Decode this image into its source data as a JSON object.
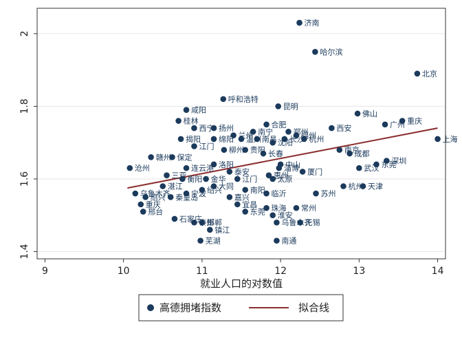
{
  "chart_data": {
    "type": "scatter",
    "xlabel": "就业人口的对数值",
    "xlim": [
      8.9,
      14.1
    ],
    "ylim": [
      1.38,
      2.07
    ],
    "x_ticks": [
      9,
      10,
      11,
      12,
      13,
      14
    ],
    "y_ticks": [
      1.4,
      1.6,
      1.8,
      2
    ],
    "grid": "horizontal",
    "legend_placement": "bottom",
    "colors": {
      "point": "#1b3a5c",
      "fit": "#8b2e2e",
      "grid": "#e6e6e6",
      "frame": "#333333"
    },
    "series": [
      {
        "name": "高德拥堵指数",
        "points": [
          {
            "x": 12.24,
            "y": 2.03,
            "label": "济南"
          },
          {
            "x": 12.44,
            "y": 1.95,
            "label": "哈尔滨"
          },
          {
            "x": 13.74,
            "y": 1.89,
            "label": "北京"
          },
          {
            "x": 11.27,
            "y": 1.82,
            "label": "呼和浩特"
          },
          {
            "x": 11.97,
            "y": 1.8,
            "label": "昆明"
          },
          {
            "x": 10.8,
            "y": 1.79,
            "label": "咸阳"
          },
          {
            "x": 12.98,
            "y": 1.78,
            "label": "佛山"
          },
          {
            "x": 13.55,
            "y": 1.76,
            "label": "重庆"
          },
          {
            "x": 10.7,
            "y": 1.76,
            "label": "桂林"
          },
          {
            "x": 13.33,
            "y": 1.75,
            "label": "广州"
          },
          {
            "x": 12.65,
            "y": 1.74,
            "label": "西安"
          },
          {
            "x": 11.15,
            "y": 1.74,
            "label": "扬州"
          },
          {
            "x": 11.82,
            "y": 1.75,
            "label": "合肥"
          },
          {
            "x": 12.1,
            "y": 1.73,
            "label": "郑州"
          },
          {
            "x": 10.9,
            "y": 1.74,
            "label": "西宁"
          },
          {
            "x": 12.2,
            "y": 1.72,
            "label": "福州"
          },
          {
            "x": 11.65,
            "y": 1.73,
            "label": "南宁"
          },
          {
            "x": 11.4,
            "y": 1.72,
            "label": "兰州"
          },
          {
            "x": 12.05,
            "y": 1.71,
            "label": "长沙"
          },
          {
            "x": 11.7,
            "y": 1.71,
            "label": "南昌"
          },
          {
            "x": 10.73,
            "y": 1.71,
            "label": "揭阳"
          },
          {
            "x": 11.15,
            "y": 1.71,
            "label": "绵阳"
          },
          {
            "x": 11.5,
            "y": 1.71,
            "label": "温州"
          },
          {
            "x": 11.9,
            "y": 1.7,
            "label": "沈阳"
          },
          {
            "x": 12.3,
            "y": 1.71,
            "label": "杭州"
          },
          {
            "x": 14.0,
            "y": 1.71,
            "label": "上海"
          },
          {
            "x": 12.75,
            "y": 1.68,
            "label": "南京"
          },
          {
            "x": 12.88,
            "y": 1.67,
            "label": "成都"
          },
          {
            "x": 13.35,
            "y": 1.65,
            "label": "深圳"
          },
          {
            "x": 10.35,
            "y": 1.66,
            "label": "赣州"
          },
          {
            "x": 10.62,
            "y": 1.66,
            "label": "保定"
          },
          {
            "x": 10.9,
            "y": 1.69,
            "label": "江门"
          },
          {
            "x": 11.28,
            "y": 1.68,
            "label": "柳州"
          },
          {
            "x": 11.55,
            "y": 1.68,
            "label": "贵阳"
          },
          {
            "x": 11.78,
            "y": 1.67,
            "label": "长春"
          },
          {
            "x": 12.0,
            "y": 1.64,
            "label": "中山"
          },
          {
            "x": 13.22,
            "y": 1.64,
            "label": "东莞"
          },
          {
            "x": 13.0,
            "y": 1.63,
            "label": "武汉"
          },
          {
            "x": 10.08,
            "y": 1.63,
            "label": "沧州"
          },
          {
            "x": 10.55,
            "y": 1.61,
            "label": "三亚"
          },
          {
            "x": 10.8,
            "y": 1.63,
            "label": "连云港"
          },
          {
            "x": 11.15,
            "y": 1.64,
            "label": "洛阳"
          },
          {
            "x": 11.35,
            "y": 1.62,
            "label": "泰安"
          },
          {
            "x": 11.85,
            "y": 1.61,
            "label": "惠州"
          },
          {
            "x": 11.98,
            "y": 1.63,
            "label": "淄博"
          },
          {
            "x": 12.28,
            "y": 1.62,
            "label": "厦门"
          },
          {
            "x": 11.9,
            "y": 1.6,
            "label": "太原"
          },
          {
            "x": 10.75,
            "y": 1.6,
            "label": "衡阳"
          },
          {
            "x": 11.05,
            "y": 1.6,
            "label": "金华"
          },
          {
            "x": 11.45,
            "y": 1.6,
            "label": "江门"
          },
          {
            "x": 10.15,
            "y": 1.56,
            "label": "乌鲁木齐"
          },
          {
            "x": 10.28,
            "y": 1.55,
            "label": "绍兴"
          },
          {
            "x": 10.5,
            "y": 1.58,
            "label": "湛江"
          },
          {
            "x": 10.8,
            "y": 1.56,
            "label": "宁波"
          },
          {
            "x": 11.15,
            "y": 1.58,
            "label": "大同"
          },
          {
            "x": 11.0,
            "y": 1.57,
            "label": "绍兴"
          },
          {
            "x": 11.55,
            "y": 1.57,
            "label": "南阳"
          },
          {
            "x": 11.82,
            "y": 1.56,
            "label": "临沂"
          },
          {
            "x": 12.45,
            "y": 1.56,
            "label": "苏州"
          },
          {
            "x": 12.8,
            "y": 1.58,
            "label": "杭州"
          },
          {
            "x": 13.05,
            "y": 1.58,
            "label": "天津"
          },
          {
            "x": 10.22,
            "y": 1.53,
            "label": "重庆"
          },
          {
            "x": 10.25,
            "y": 1.51,
            "label": "邢台"
          },
          {
            "x": 10.6,
            "y": 1.55,
            "label": "秦皇岛"
          },
          {
            "x": 11.35,
            "y": 1.55,
            "label": "嘉兴"
          },
          {
            "x": 11.45,
            "y": 1.53,
            "label": "宜昌"
          },
          {
            "x": 11.55,
            "y": 1.51,
            "label": "东莞"
          },
          {
            "x": 11.82,
            "y": 1.52,
            "label": "珠海"
          },
          {
            "x": 12.2,
            "y": 1.52,
            "label": "常州"
          },
          {
            "x": 11.9,
            "y": 1.5,
            "label": "淮安"
          },
          {
            "x": 10.65,
            "y": 1.49,
            "label": "石家庄"
          },
          {
            "x": 10.9,
            "y": 1.48,
            "label": "泰州"
          },
          {
            "x": 11.0,
            "y": 1.48,
            "label": "邯郸"
          },
          {
            "x": 11.95,
            "y": 1.48,
            "label": "乌鲁木齐"
          },
          {
            "x": 12.25,
            "y": 1.48,
            "label": "无锡"
          },
          {
            "x": 11.1,
            "y": 1.46,
            "label": "镇江"
          },
          {
            "x": 10.98,
            "y": 1.43,
            "label": "芜湖"
          },
          {
            "x": 11.95,
            "y": 1.43,
            "label": "南通"
          }
        ]
      },
      {
        "name": "拟合线",
        "line": [
          {
            "x": 10.05,
            "y": 1.575
          },
          {
            "x": 14.0,
            "y": 1.74
          }
        ]
      }
    ]
  }
}
